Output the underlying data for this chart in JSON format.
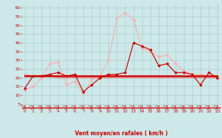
{
  "x": [
    0,
    1,
    2,
    3,
    4,
    5,
    6,
    7,
    8,
    9,
    10,
    11,
    12,
    13,
    14,
    15,
    16,
    17,
    18,
    19,
    20,
    21,
    22,
    23
  ],
  "line_avg_y": [
    14,
    21,
    21,
    22,
    23,
    21,
    22,
    12,
    16,
    20,
    22,
    22,
    23,
    40,
    38,
    36,
    27,
    28,
    23,
    23,
    22,
    16,
    23,
    20
  ],
  "line_gust_y": [
    13,
    15,
    20,
    28,
    29,
    16,
    18,
    11,
    19,
    21,
    30,
    54,
    57,
    53,
    37,
    35,
    32,
    33,
    28,
    24,
    22,
    22,
    21,
    20
  ],
  "line_mean1_y": [
    21,
    21,
    21,
    21,
    21,
    21,
    21,
    21,
    21,
    21,
    21,
    21,
    21,
    21,
    21,
    21,
    21,
    21,
    21,
    21,
    21,
    21,
    21,
    21
  ],
  "line_mean2_y": [
    21,
    21,
    21,
    21,
    21,
    21,
    21,
    21,
    21,
    21,
    21,
    21,
    21,
    21,
    21,
    21,
    21,
    21,
    21,
    21,
    21,
    21,
    21,
    21
  ],
  "line_trend_y": [
    22,
    21,
    21,
    21,
    20,
    20,
    20,
    20,
    20,
    20,
    20,
    20,
    20,
    20,
    20,
    20,
    20,
    20,
    20,
    20,
    20,
    20,
    20,
    20
  ],
  "bg_color": "#cce8e8",
  "grid_color": "#aacccc",
  "color_avg": "#cc0000",
  "color_gust": "#ffaaaa",
  "color_mean1": "#cc0000",
  "color_mean2": "#ffbbbb",
  "color_trend": "#ff6666",
  "xlabel": "Vent moyen/en rafales ( km/h )",
  "yticks": [
    5,
    10,
    15,
    20,
    25,
    30,
    35,
    40,
    45,
    50,
    55,
    60
  ],
  "xticks": [
    0,
    1,
    2,
    3,
    4,
    5,
    6,
    7,
    8,
    9,
    10,
    11,
    12,
    13,
    14,
    15,
    16,
    17,
    18,
    19,
    20,
    21,
    22,
    23
  ],
  "ylim": [
    3,
    62
  ],
  "xlim": [
    -0.3,
    23.3
  ]
}
